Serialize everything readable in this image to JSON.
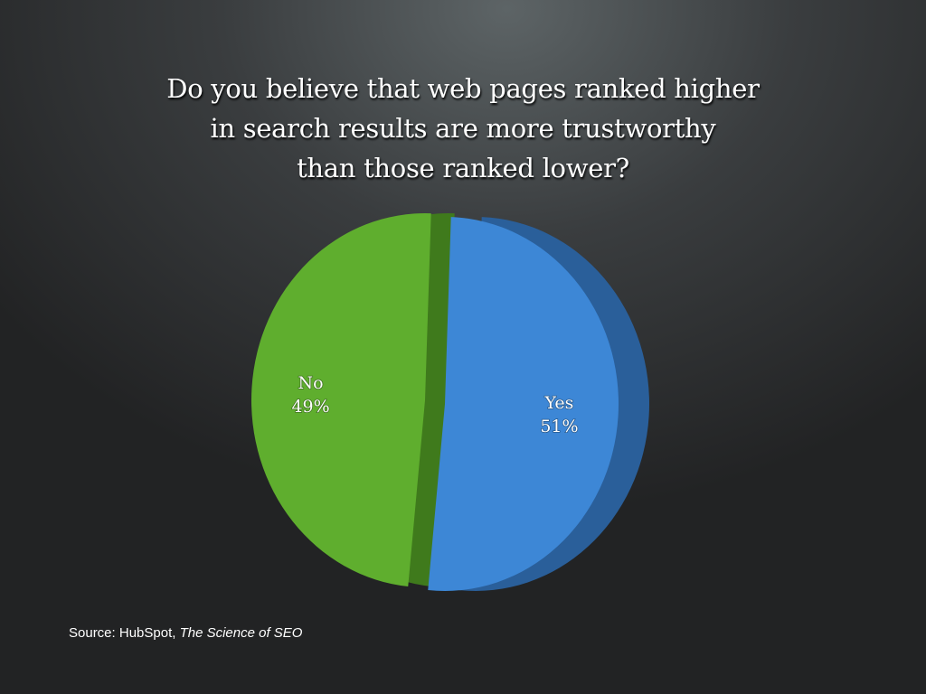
{
  "chart_data": {
    "type": "pie",
    "title": [
      "Do you believe that web pages ranked higher",
      "in search results are more trustworthy",
      "than those ranked lower?"
    ],
    "slices": [
      {
        "label": "Yes",
        "value": 51,
        "display": "51%",
        "color": "#3d87d6",
        "side_color": "#2a5f9a"
      },
      {
        "label": "No",
        "value": 49,
        "display": "49%",
        "color": "#5fae2e",
        "side_color": "#3f7a1c"
      }
    ]
  },
  "source": {
    "prefix": "Source: HubSpot, ",
    "work": "The Science of SEO"
  }
}
